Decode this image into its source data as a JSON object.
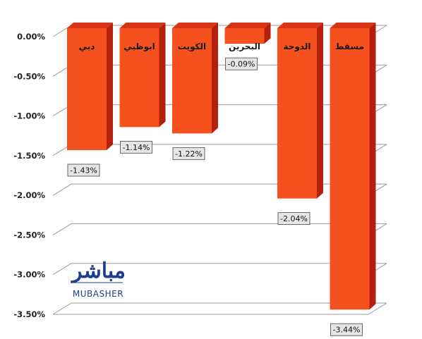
{
  "chart_data": {
    "type": "bar",
    "orientation": "vertical",
    "style": "3d",
    "categories": [
      "دبي",
      "ابوظبي",
      "الكويت",
      "البحرين",
      "الدوحة",
      "مسقط"
    ],
    "values": [
      -1.43,
      -1.14,
      -1.22,
      -0.09,
      -2.04,
      -3.44
    ],
    "data_labels": [
      "-1.43%",
      "-1.14%",
      "-1.22%",
      "-0.09%",
      "-2.04%",
      "-3.44%"
    ],
    "y_ticks": [
      0,
      -0.5,
      -1.0,
      -1.5,
      -2.0,
      -2.5,
      -3.0,
      -3.5
    ],
    "y_tick_labels": [
      "0.00%",
      "-0.50%",
      "-1.00%",
      "-1.50%",
      "-2.00%",
      "-2.50%",
      "-3.00%",
      "-3.50%"
    ],
    "ylim": [
      -3.5,
      0
    ],
    "grid": true,
    "legend": "none",
    "title": "",
    "xlabel": "",
    "ylabel": ""
  },
  "colors": {
    "bar_front": "#f4511e",
    "bar_side": "#b5200c",
    "bar_top": "#d83418",
    "grid": "#9a9a9a",
    "label_box": "#e6e6e6",
    "logo": "#1f3d8c"
  },
  "logo": {
    "arabic": "مباشر",
    "english": "MUBASHER"
  }
}
